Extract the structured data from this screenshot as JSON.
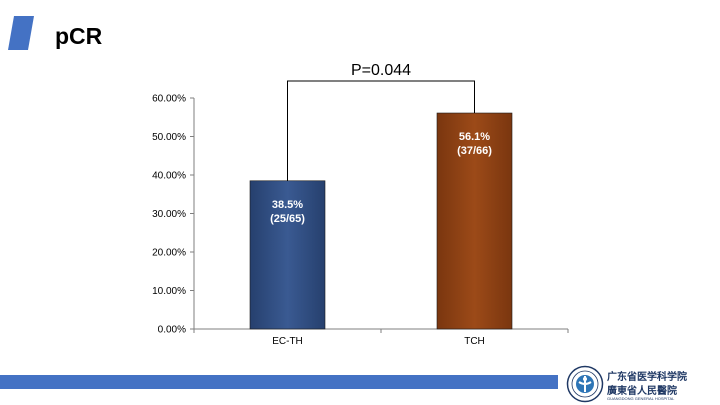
{
  "slide": {
    "title": "pCR",
    "accent_color": "#4472c4"
  },
  "logo": {
    "line1": "广东省医学科学院",
    "line2": "廣東省人民醫院",
    "line3": "GUANGDONG GENERAL HOSPITAL"
  },
  "chart_data": {
    "type": "bar",
    "categories": [
      "EC-TH",
      "TCH"
    ],
    "values": [
      38.5,
      56.1
    ],
    "bar_labels": [
      {
        "line1": "38.5%",
        "line2": "(25/65)"
      },
      {
        "line1": "56.1%",
        "line2": "(37/66)"
      }
    ],
    "bar_colors": [
      "#2f4a7c",
      "#8b3f12"
    ],
    "ylim": [
      0,
      60
    ],
    "yticks": [
      0,
      10,
      20,
      30,
      40,
      50,
      60
    ],
    "ytick_labels": [
      "0.00%",
      "10.00%",
      "20.00%",
      "30.00%",
      "40.00%",
      "50.00%",
      "60.00%"
    ],
    "annotation": "P=0.044",
    "grid": false,
    "title": "",
    "xlabel": "",
    "ylabel": ""
  }
}
